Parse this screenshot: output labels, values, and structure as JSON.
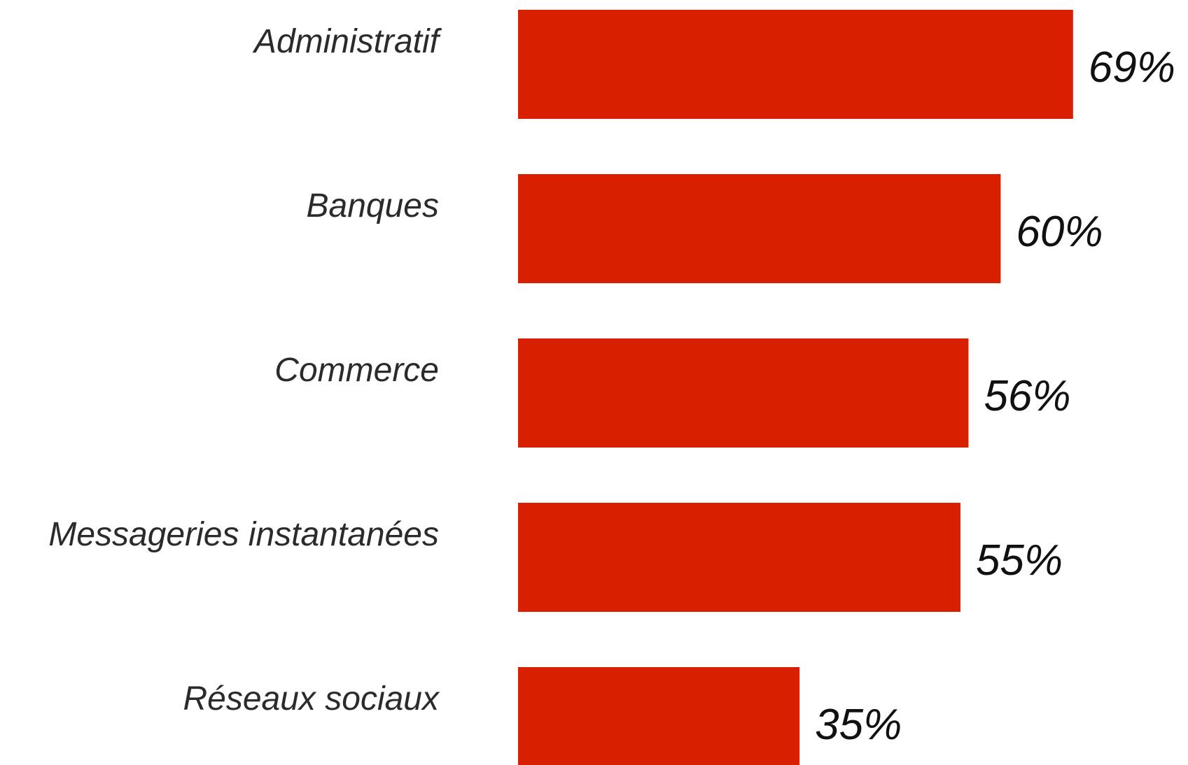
{
  "chart_data": {
    "type": "bar",
    "orientation": "horizontal",
    "categories": [
      "Administratif",
      "Banques",
      "Commerce",
      "Messageries instantanées",
      "Réseaux sociaux"
    ],
    "values": [
      69,
      60,
      56,
      55,
      35
    ],
    "value_labels": [
      "69%",
      "60%",
      "56%",
      "55%",
      "35%"
    ],
    "title": "",
    "xlabel": "",
    "ylabel": "",
    "xlim": [
      0,
      100
    ],
    "grid": false,
    "legend": "none",
    "bar_color": "#d81f00"
  }
}
